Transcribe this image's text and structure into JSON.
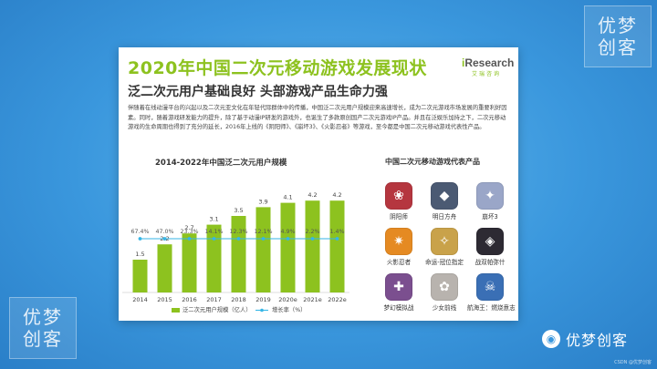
{
  "watermark": {
    "line1": "优梦",
    "line2": "创客"
  },
  "card": {
    "title": "2020年中国二次元移动游戏发展现状",
    "subtitle": "泛二次元用户基础良好 头部游戏产品生命力强",
    "brand_en_prefix": "i",
    "brand_en": "Research",
    "brand_cn": "艾瑞咨询",
    "paragraph": "伴随着在线动漫平台的兴起以及二次元亚文化在年轻代际群体中的传播，中国泛二次元用户规模迎来高速增长，成为二次元游戏市场发展的重要利好因素。同时，随着游戏研发能力的提升，除了基于动漫IP研发的游戏外，也诞生了多款原创国产二次元游戏IP产品。并且在泛娱乐加持之下，二次元移动游戏的生命周期也得到了充分的延长，2016年上线的《阴阳师》、《崩坏3》、《火影忍者》等游戏，至今都是中国二次元移动游戏代表性产品。",
    "chart_title": "2014-2022年中国泛二次元用户规模",
    "products_title": "中国二次元移动游戏代表产品"
  },
  "chart_data": {
    "type": "bar",
    "title": "2014-2022年中国泛二次元用户规模",
    "categories": [
      "2014",
      "2015",
      "2016",
      "2017",
      "2018",
      "2019",
      "2020e",
      "2021e",
      "2022e"
    ],
    "series": [
      {
        "name": "泛二次元用户规模（亿人）",
        "type": "bar",
        "color": "#8dc21f",
        "values": [
          1.5,
          2.2,
          2.7,
          3.1,
          3.5,
          3.9,
          4.1,
          4.2,
          4.2
        ]
      },
      {
        "name": "增长率（%）",
        "type": "line",
        "color": "#36b6e6",
        "values": [
          "67.4%",
          "47.0%",
          "23.3%",
          "14.1%",
          "12.3%",
          "12.1%",
          "4.9%",
          "2.2%",
          "1.4%"
        ]
      }
    ],
    "legend_position": "bottom",
    "grid": false
  },
  "products": [
    {
      "name": "阴阳师",
      "color": "#b5363f",
      "glyph": "❀"
    },
    {
      "name": "明日方舟",
      "color": "#4b5a73",
      "glyph": "◆"
    },
    {
      "name": "崩坏3",
      "color": "#9aa6c8",
      "glyph": "✦"
    },
    {
      "name": "火影忍者",
      "color": "#e58a22",
      "glyph": "✷"
    },
    {
      "name": "命运-冠位指定",
      "color": "#c9a24a",
      "glyph": "✧"
    },
    {
      "name": "战双帕弥什",
      "color": "#2d2a33",
      "glyph": "◈"
    },
    {
      "name": "梦幻模拟战",
      "color": "#7b4f8f",
      "glyph": "✚"
    },
    {
      "name": "少女前线",
      "color": "#b8b3ae",
      "glyph": "✿"
    },
    {
      "name": "航海王：燃烧意志",
      "color": "#3a6fb5",
      "glyph": "☠"
    }
  ],
  "footer": {
    "brand": "优梦创客",
    "credit": "CSDN @优梦创客",
    "wechat_icon": "wechat-icon"
  }
}
